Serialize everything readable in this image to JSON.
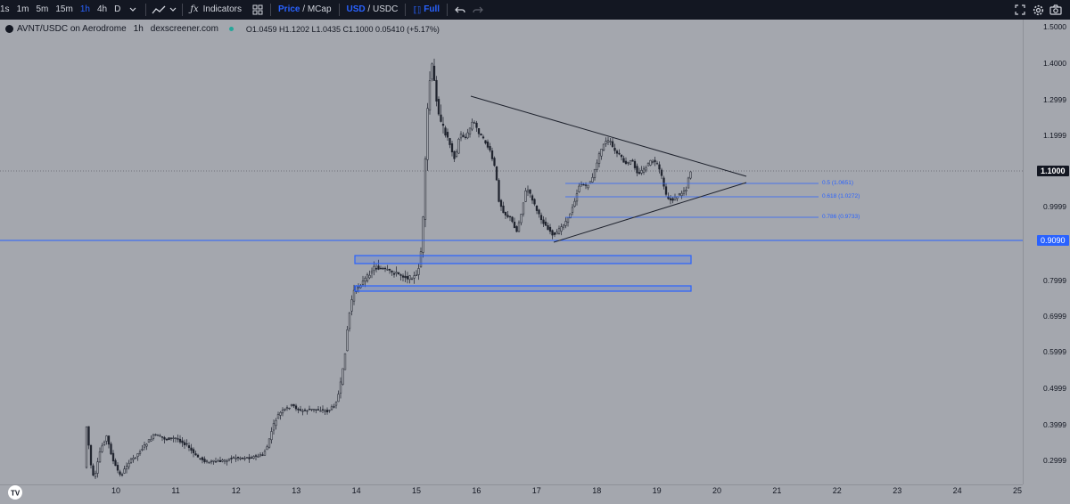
{
  "toolbar": {
    "intervals": [
      "1s",
      "1m",
      "5m",
      "15m",
      "1h",
      "4h",
      "D"
    ],
    "active_interval": "1h",
    "indicators_label": "Indicators",
    "price_label": "Price",
    "slash1": "/",
    "mcap_label": "MCap",
    "usd_label": "USD",
    "slash2": "/",
    "usdc_label": "USDC",
    "full_label": "Full"
  },
  "legend": {
    "symbol": "AVNT/USDC on Aerodrome",
    "interval": "1h",
    "source": "dexscreener.com",
    "ohlc": "O1.0459 H1.1202 L1.0435 C1.1000 0.05410 (+5.17%)"
  },
  "price_axis": {
    "ticks": [
      "1.5000",
      "1.4000",
      "1.2999",
      "1.1999",
      "1.1000",
      "0.9999",
      "0.9090",
      "0.7999",
      "0.6999",
      "0.5999",
      "0.4999",
      "0.3999",
      "0.2999"
    ],
    "current_price": "1.1000",
    "line_price": "0.9090"
  },
  "time_axis": {
    "ticks": [
      "10",
      "11",
      "12",
      "13",
      "14",
      "15",
      "16",
      "17",
      "18",
      "19",
      "20",
      "21",
      "22",
      "23",
      "24",
      "25"
    ]
  },
  "fib_levels": [
    "0.5 (1.0651)",
    "0.618 (1.0272)",
    "0.786 (0.9733)"
  ],
  "colors": {
    "background": "#a4a7ae",
    "toolbar": "#131722",
    "accent": "#2962ff",
    "candle": "#1e222d"
  },
  "icons": {
    "chart_type": "line-chart-icon",
    "indicators": "function-icon",
    "layout": "grid-icon",
    "undo": "undo-icon",
    "redo": "redo-icon",
    "fullscreen": "fullscreen-icon",
    "settings": "gear-icon",
    "snapshot": "camera-icon"
  }
}
